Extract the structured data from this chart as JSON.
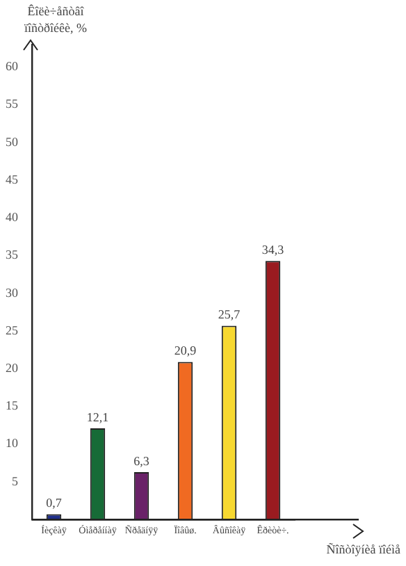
{
  "chart_data": {
    "type": "bar",
    "ylabel": "Êîëè÷åñòâî ïîñòðîéêè, %",
    "xlabel": "Ñîñòîÿíèå ïîéìå",
    "categories": [
      "Íèçêàÿ",
      "Óìåðåííàÿ",
      "Ñðåäíÿÿ",
      "Ïîâûø.",
      "Âûñîêàÿ",
      "Êðèòè÷."
    ],
    "values": [
      0.7,
      12.1,
      6.3,
      20.9,
      25.7,
      34.3
    ],
    "colors": [
      "#1f2f8a",
      "#176b37",
      "#6a2268",
      "#f06a22",
      "#f7d830",
      "#9a1b20"
    ],
    "ylim": [
      0,
      63
    ],
    "yticks": [
      5,
      10,
      15,
      20,
      25,
      30,
      35,
      40,
      45,
      50,
      55,
      60
    ],
    "value_labels": [
      "0,7",
      "12,1",
      "6,3",
      "20,9",
      "25,7",
      "34,3"
    ],
    "grid": false,
    "legend": false
  }
}
